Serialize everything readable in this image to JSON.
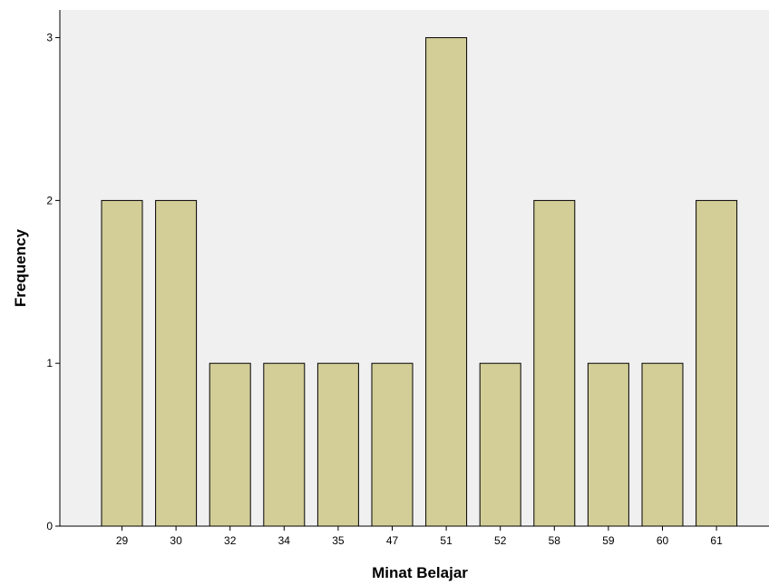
{
  "chart_data": {
    "type": "bar",
    "title": "",
    "xlabel": "Minat Belajar",
    "ylabel": "Frequency",
    "categories": [
      "29",
      "30",
      "32",
      "34",
      "35",
      "47",
      "51",
      "52",
      "58",
      "59",
      "60",
      "61"
    ],
    "values": [
      2,
      2,
      1,
      1,
      1,
      1,
      3,
      1,
      2,
      1,
      1,
      2
    ],
    "ylim": [
      0,
      3.17
    ],
    "yticks": [
      "0",
      "1",
      "2",
      "3"
    ],
    "grid": false,
    "legend": "none",
    "colors": {
      "plot_background": "#f0f0f0",
      "bar_fill": "#d3ce98",
      "bar_stroke": "#000000",
      "axis": "#000000"
    }
  }
}
